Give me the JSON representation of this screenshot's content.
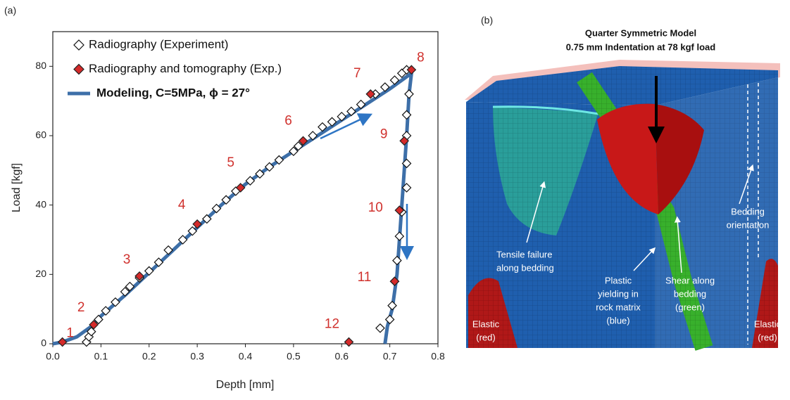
{
  "chart_data": {
    "type": "scatter",
    "panel_label": "(a)",
    "x_label": "Depth [mm]",
    "y_label": "Load [kgf]",
    "xlim": [
      0,
      0.8
    ],
    "ylim": [
      0,
      90
    ],
    "xticks": [
      {
        "value": 0,
        "label": "0.0"
      },
      0.1,
      0.2,
      0.3,
      0.4,
      0.5,
      0.6,
      0.7,
      0.8
    ],
    "yticks": [
      0,
      20,
      40,
      60,
      80
    ],
    "series": [
      {
        "name": "Radiography (Experiment)",
        "color": "#111111",
        "marker": "diamond-open",
        "x": [
          0.07,
          0.075,
          0.08,
          0.095,
          0.11,
          0.13,
          0.15,
          0.16,
          0.18,
          0.2,
          0.22,
          0.24,
          0.27,
          0.29,
          0.32,
          0.34,
          0.36,
          0.38,
          0.41,
          0.43,
          0.45,
          0.47,
          0.5,
          0.51,
          0.54,
          0.56,
          0.58,
          0.6,
          0.62,
          0.64,
          0.67,
          0.69,
          0.71,
          0.725,
          0.735,
          0.74,
          0.735,
          0.735,
          0.735,
          0.735,
          0.725,
          0.72,
          0.715,
          0.71,
          0.705,
          0.7,
          0.68
        ],
        "values": [
          0.5,
          2,
          3.5,
          7,
          9.5,
          12,
          15,
          16.5,
          19,
          21,
          23.5,
          27,
          30,
          32.5,
          36,
          39,
          41.5,
          44,
          47,
          49,
          51,
          53,
          55.5,
          57,
          60,
          62.5,
          64,
          65.5,
          67,
          69,
          72,
          74,
          76,
          78,
          79,
          72,
          66,
          60,
          52,
          45,
          38,
          31,
          24,
          18,
          11,
          7,
          4.5
        ]
      },
      {
        "name": "Radiography and tomography (Exp.)",
        "color": "#d42a2a",
        "marker": "diamond-filled",
        "x": [
          0.02,
          0.085,
          0.18,
          0.3,
          0.39,
          0.52,
          0.66,
          0.745,
          0.73,
          0.72,
          0.71,
          0.615
        ],
        "values": [
          0.5,
          5.5,
          19.5,
          34.5,
          45,
          58.5,
          72,
          79,
          58.5,
          38.5,
          18,
          0.5
        ],
        "point_labels": [
          "1",
          "2",
          "3",
          "4",
          "5",
          "6",
          "7",
          "8",
          "9",
          "10",
          "11",
          "12"
        ]
      },
      {
        "name": "Modeling, C=5MPa, ϕ = 27°",
        "color": "#3d6fa8",
        "marker": "line",
        "x": [
          0,
          0.02,
          0.05,
          0.08,
          0.1,
          0.15,
          0.2,
          0.25,
          0.3,
          0.35,
          0.4,
          0.45,
          0.5,
          0.55,
          0.6,
          0.65,
          0.7,
          0.745,
          0.74,
          0.735,
          0.73,
          0.725,
          0.72,
          0.715,
          0.705,
          0.695,
          0.69
        ],
        "values": [
          0,
          0.5,
          2,
          5,
          8,
          14,
          20.5,
          27,
          33.5,
          40,
          46,
          51,
          55.5,
          60,
          64.5,
          69,
          73.5,
          78,
          72,
          60,
          50,
          40,
          30,
          20,
          10,
          5,
          0
        ]
      }
    ]
  },
  "panel_b": {
    "panel_label": "(b)",
    "title": [
      "Quarter Symmetric Model",
      "0.75 mm Indentation at 78 kgf load"
    ],
    "labels": {
      "tensile": [
        "Tensile failure",
        "along bedding"
      ],
      "plastic": [
        "Plastic",
        "yielding in",
        "rock matrix",
        "(blue)"
      ],
      "shear": [
        "Shear along",
        "bedding",
        "(green)"
      ],
      "bedding": [
        "Bedding",
        "orientation"
      ],
      "elastic_left": [
        "Elastic",
        "(red)"
      ],
      "elastic_right": [
        "Elastic",
        "(red)"
      ]
    }
  }
}
